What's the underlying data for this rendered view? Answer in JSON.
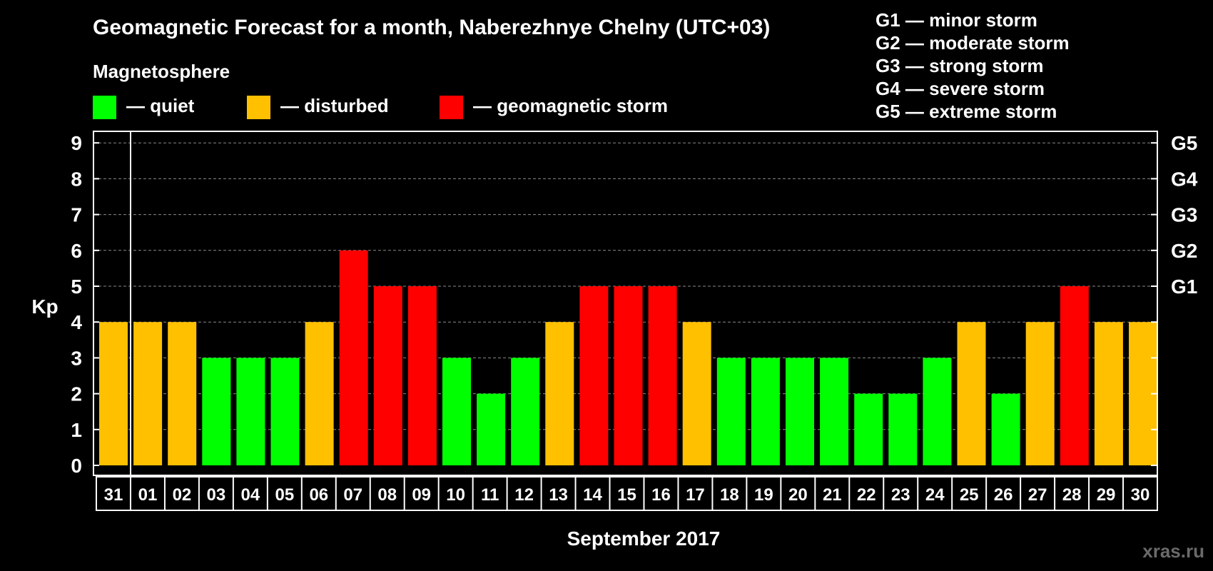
{
  "chart_data": {
    "type": "bar",
    "title": "Geomagnetic Forecast for a month, Naberezhnye Chelny (UTC+03)",
    "legend_heading": "Magnetosphere",
    "legend": [
      {
        "label": "— quiet",
        "color": "#00ff00"
      },
      {
        "label": "— disturbed",
        "color": "#ffc000"
      },
      {
        "label": "— geomagnetic storm",
        "color": "#ff0000"
      }
    ],
    "storm_scale": [
      "G1 — minor storm",
      "G2 — moderate storm",
      "G3 — strong storm",
      "G4 — severe storm",
      "G5 — extreme storm"
    ],
    "ylabel": "Kp",
    "xlabel": "September 2017",
    "ylim": [
      0,
      9
    ],
    "yticks": [
      "0",
      "1",
      "2",
      "3",
      "4",
      "5",
      "6",
      "7",
      "8",
      "9"
    ],
    "right_ticks": [
      {
        "value": 5,
        "label": "G1"
      },
      {
        "value": 6,
        "label": "G2"
      },
      {
        "value": 7,
        "label": "G3"
      },
      {
        "value": 8,
        "label": "G4"
      },
      {
        "value": 9,
        "label": "G5"
      }
    ],
    "grid": true,
    "categories": [
      "31",
      "01",
      "02",
      "03",
      "04",
      "05",
      "06",
      "07",
      "08",
      "09",
      "10",
      "11",
      "12",
      "13",
      "14",
      "15",
      "16",
      "17",
      "18",
      "19",
      "20",
      "21",
      "22",
      "23",
      "24",
      "25",
      "26",
      "27",
      "28",
      "29",
      "30"
    ],
    "values": [
      4,
      4,
      4,
      3,
      3,
      3,
      4,
      6,
      5,
      5,
      3,
      2,
      3,
      4,
      5,
      5,
      5,
      4,
      3,
      3,
      3,
      3,
      2,
      2,
      3,
      4,
      2,
      4,
      5,
      4,
      4
    ],
    "colors": {
      "quiet": "#00ff00",
      "disturbed": "#ffc000",
      "storm": "#ff0000"
    },
    "watermark": "xras.ru"
  }
}
